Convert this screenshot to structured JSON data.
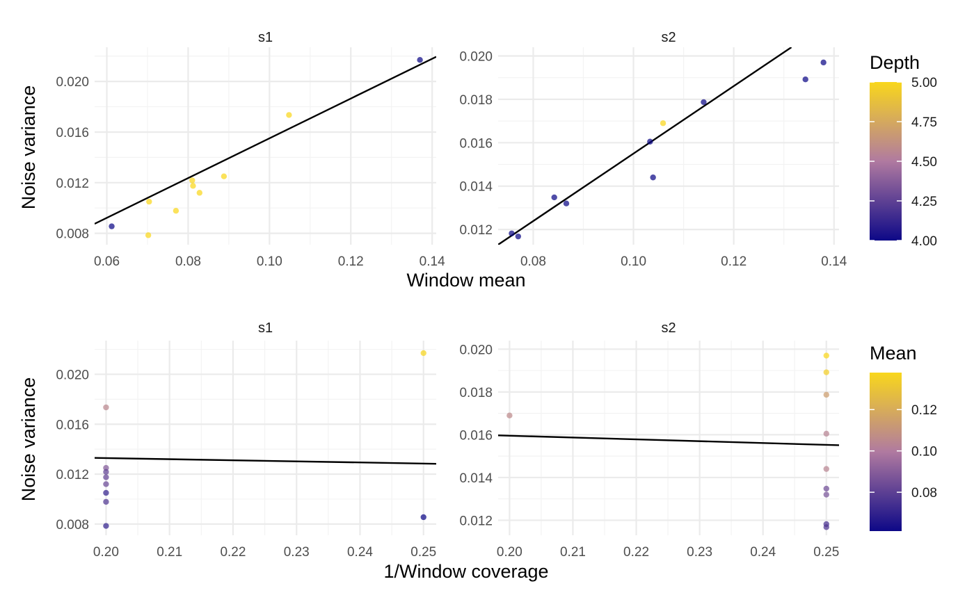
{
  "chart_data": [
    {
      "type": "scatter",
      "facet": "s1",
      "xlabel": "Window mean",
      "ylabel": "Noise variance",
      "xlim": [
        0.057,
        0.141
      ],
      "ylim": [
        0.0071,
        0.0227
      ],
      "xticks": [
        0.06,
        0.08,
        0.1,
        0.12,
        0.14
      ],
      "yticks": [
        0.008,
        0.012,
        0.016,
        0.02
      ],
      "color_by": "Depth",
      "points": [
        {
          "x": 0.0612,
          "y": 0.00855,
          "c": 4
        },
        {
          "x": 0.0702,
          "y": 0.00785,
          "c": 5
        },
        {
          "x": 0.0704,
          "y": 0.0105,
          "c": 5
        },
        {
          "x": 0.077,
          "y": 0.00978,
          "c": 5
        },
        {
          "x": 0.081,
          "y": 0.01218,
          "c": 5
        },
        {
          "x": 0.0812,
          "y": 0.01175,
          "c": 5
        },
        {
          "x": 0.0828,
          "y": 0.0112,
          "c": 5
        },
        {
          "x": 0.0888,
          "y": 0.0125,
          "c": 5
        },
        {
          "x": 0.1048,
          "y": 0.01735,
          "c": 5
        },
        {
          "x": 0.137,
          "y": 0.0217,
          "c": 4
        }
      ],
      "fit": {
        "x1": 0.057,
        "y1": 0.00875,
        "x2": 0.141,
        "y2": 0.02195
      }
    },
    {
      "type": "scatter",
      "facet": "s2",
      "xlabel": "Window mean",
      "ylabel": "Noise variance",
      "xlim": [
        0.073,
        0.141
      ],
      "ylim": [
        0.0113,
        0.0204
      ],
      "xticks": [
        0.08,
        0.1,
        0.12,
        0.14
      ],
      "yticks": [
        0.012,
        0.014,
        0.016,
        0.018,
        0.02
      ],
      "color_by": "Depth",
      "points": [
        {
          "x": 0.0757,
          "y": 0.01182,
          "c": 4
        },
        {
          "x": 0.077,
          "y": 0.01168,
          "c": 4
        },
        {
          "x": 0.0842,
          "y": 0.01348,
          "c": 4
        },
        {
          "x": 0.0866,
          "y": 0.0132,
          "c": 4
        },
        {
          "x": 0.1033,
          "y": 0.01605,
          "c": 4
        },
        {
          "x": 0.1039,
          "y": 0.0144,
          "c": 4
        },
        {
          "x": 0.1059,
          "y": 0.0169,
          "c": 5
        },
        {
          "x": 0.114,
          "y": 0.01787,
          "c": 4
        },
        {
          "x": 0.1343,
          "y": 0.01892,
          "c": 4
        },
        {
          "x": 0.1379,
          "y": 0.0197,
          "c": 4
        }
      ],
      "fit": {
        "x1": 0.073,
        "y1": 0.0113,
        "x2": 0.1315,
        "y2": 0.0204
      }
    },
    {
      "type": "scatter",
      "facet": "s1",
      "xlabel": "1/Window coverage",
      "ylabel": "Noise variance",
      "xlim": [
        0.1982,
        0.252
      ],
      "ylim": [
        0.0071,
        0.0227
      ],
      "xticks": [
        0.2,
        0.21,
        0.22,
        0.23,
        0.24,
        0.25
      ],
      "xtick_labels": [
        "0.20",
        "0.21",
        "0.22",
        "0.23",
        "0.24",
        "0.25"
      ],
      "yticks": [
        0.008,
        0.012,
        0.016,
        0.02
      ],
      "color_by": "Mean",
      "points": [
        {
          "x": 0.2,
          "y": 0.01735,
          "c": 0.1048
        },
        {
          "x": 0.2,
          "y": 0.0125,
          "c": 0.0888
        },
        {
          "x": 0.2,
          "y": 0.01218,
          "c": 0.081
        },
        {
          "x": 0.2,
          "y": 0.01175,
          "c": 0.0812
        },
        {
          "x": 0.2,
          "y": 0.0112,
          "c": 0.0828
        },
        {
          "x": 0.2,
          "y": 0.0105,
          "c": 0.0704
        },
        {
          "x": 0.2,
          "y": 0.00978,
          "c": 0.077
        },
        {
          "x": 0.2,
          "y": 0.00785,
          "c": 0.0702
        },
        {
          "x": 0.25,
          "y": 0.0217,
          "c": 0.137
        },
        {
          "x": 0.25,
          "y": 0.00855,
          "c": 0.0612
        }
      ],
      "fit": {
        "x1": 0.1982,
        "y1": 0.0133,
        "x2": 0.252,
        "y2": 0.01283
      }
    },
    {
      "type": "scatter",
      "facet": "s2",
      "xlabel": "1/Window coverage",
      "ylabel": "Noise variance",
      "xlim": [
        0.1982,
        0.252
      ],
      "ylim": [
        0.0113,
        0.0204
      ],
      "xticks": [
        0.2,
        0.21,
        0.22,
        0.23,
        0.24,
        0.25
      ],
      "xtick_labels": [
        "0.20",
        "0.21",
        "0.22",
        "0.23",
        "0.24",
        "0.25"
      ],
      "yticks": [
        0.012,
        0.014,
        0.016,
        0.018,
        0.02
      ],
      "color_by": "Mean",
      "points": [
        {
          "x": 0.2,
          "y": 0.0169,
          "c": 0.1059
        },
        {
          "x": 0.25,
          "y": 0.0197,
          "c": 0.1379
        },
        {
          "x": 0.25,
          "y": 0.01892,
          "c": 0.1343
        },
        {
          "x": 0.25,
          "y": 0.01787,
          "c": 0.114
        },
        {
          "x": 0.25,
          "y": 0.01605,
          "c": 0.1033
        },
        {
          "x": 0.25,
          "y": 0.0144,
          "c": 0.1039
        },
        {
          "x": 0.25,
          "y": 0.01348,
          "c": 0.0842
        },
        {
          "x": 0.25,
          "y": 0.0132,
          "c": 0.0866
        },
        {
          "x": 0.25,
          "y": 0.01182,
          "c": 0.0757
        },
        {
          "x": 0.25,
          "y": 0.01168,
          "c": 0.077
        }
      ],
      "fit": {
        "x1": 0.1982,
        "y1": 0.01597,
        "x2": 0.252,
        "y2": 0.01551
      }
    }
  ],
  "legends": [
    {
      "title": "Depth",
      "min": 4.0,
      "max": 5.0,
      "ticks": [
        4.0,
        4.25,
        4.5,
        4.75,
        5.0
      ],
      "tick_labels": [
        "4.00",
        "4.25",
        "4.50",
        "4.75",
        "5.00"
      ]
    },
    {
      "title": "Mean",
      "min": 0.0612,
      "max": 0.1379,
      "ticks": [
        0.08,
        0.1,
        0.12
      ],
      "tick_labels": [
        "0.08",
        "0.10",
        "0.12"
      ]
    }
  ],
  "colors": {
    "low": "#0d0887",
    "mid": "#b07aa0",
    "high": "#f9d71c",
    "fit": "#000000",
    "grid": "#ebebeb"
  }
}
